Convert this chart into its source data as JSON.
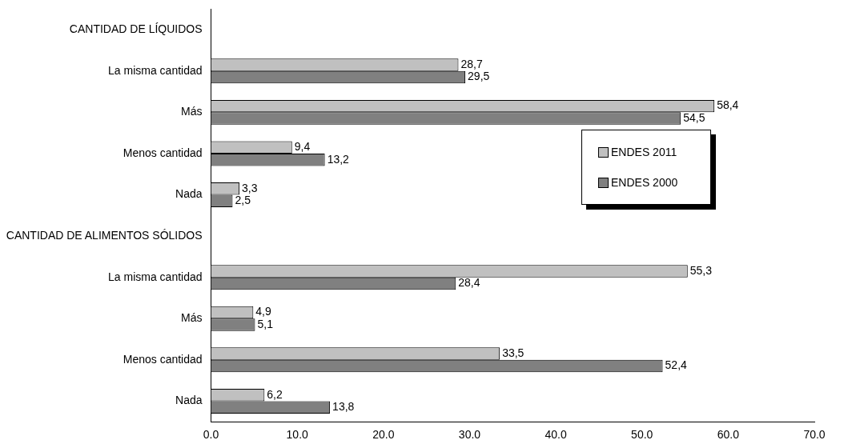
{
  "chart_data": {
    "type": "bar",
    "orientation": "horizontal",
    "categories": [
      "CANTIDAD DE LÍQUIDOS",
      "La misma cantidad",
      "Más",
      "Menos cantidad",
      "Nada",
      "CANTIDAD DE ALIMENTOS SÓLIDOS",
      "La misma cantidad",
      "Más",
      "Menos cantidad",
      "Nada"
    ],
    "series": [
      {
        "name": "ENDES 2011",
        "color": "#c0c0c0",
        "values": [
          null,
          28.7,
          58.4,
          9.4,
          3.3,
          null,
          55.3,
          4.9,
          33.5,
          6.2
        ],
        "value_labels": [
          null,
          "28,7",
          "58,4",
          "9,4",
          "3,3",
          null,
          "55,3",
          "4,9",
          "33,5",
          "6,2"
        ]
      },
      {
        "name": "ENDES 2000",
        "color": "#808080",
        "values": [
          null,
          29.5,
          54.5,
          13.2,
          2.5,
          null,
          28.4,
          5.1,
          52.4,
          13.8
        ],
        "value_labels": [
          null,
          "29,5",
          "54,5",
          "13,2",
          "2,5",
          null,
          "28,4",
          "5,1",
          "52,4",
          "13,8"
        ]
      }
    ],
    "xlim": [
      0,
      70
    ],
    "xticks": [
      {
        "value": 0,
        "label": "0.0"
      },
      {
        "value": 10,
        "label": "10.0"
      },
      {
        "value": 20,
        "label": "20.0"
      },
      {
        "value": 30,
        "label": "30.0"
      },
      {
        "value": 40,
        "label": "40.0"
      },
      {
        "value": 50,
        "label": "50.0"
      },
      {
        "value": 60,
        "label": "60.0"
      },
      {
        "value": 70,
        "label": "70.0"
      }
    ],
    "grid": false,
    "legend": "right"
  }
}
